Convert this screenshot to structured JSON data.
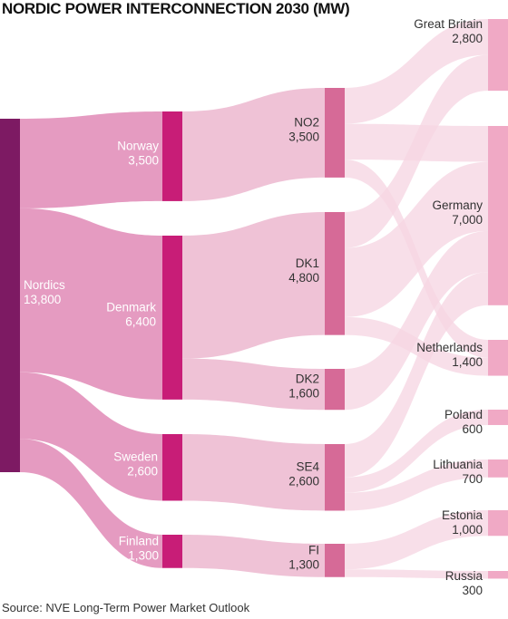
{
  "title": "NORDIC POWER INTERCONNECTION 2030 (MW)",
  "source": "Source: NVE Long-Term Power Market Outlook",
  "colors": {
    "root": "#7d1a63",
    "country": "#c81d77",
    "zone": "#d66a97",
    "destination": "#f0a9c5",
    "link_root": "#e392bc",
    "link_country": "#eebdd3",
    "link_zone": "#f6d6e3"
  },
  "nodes": {
    "nordics": {
      "name": "Nordics",
      "value": "13,800"
    },
    "norway": {
      "name": "Norway",
      "value": "3,500"
    },
    "denmark": {
      "name": "Denmark",
      "value": "6,400"
    },
    "sweden": {
      "name": "Sweden",
      "value": "2,600"
    },
    "finland": {
      "name": "Finland",
      "value": "1,300"
    },
    "no2": {
      "name": "NO2",
      "value": "3,500"
    },
    "dk1": {
      "name": "DK1",
      "value": "4,800"
    },
    "dk2": {
      "name": "DK2",
      "value": "1,600"
    },
    "se4": {
      "name": "SE4",
      "value": "2,600"
    },
    "fi": {
      "name": "FI",
      "value": "1,300"
    },
    "great_britain": {
      "name": "Great Britain",
      "value": "2,800"
    },
    "germany": {
      "name": "Germany",
      "value": "7,000"
    },
    "netherlands": {
      "name": "Netherlands",
      "value": "1,400"
    },
    "poland": {
      "name": "Poland",
      "value": "600"
    },
    "lithuania": {
      "name": "Lithuania",
      "value": "700"
    },
    "estonia": {
      "name": "Estonia",
      "value": "1,000"
    },
    "russia": {
      "name": "Russia",
      "value": "300"
    }
  },
  "chart_data": {
    "type": "sankey",
    "title": "NORDIC POWER INTERCONNECTION 2030 (MW)",
    "unit": "MW",
    "nodes": [
      {
        "id": "nordics",
        "label": "Nordics",
        "value": 13800,
        "level": 0
      },
      {
        "id": "norway",
        "label": "Norway",
        "value": 3500,
        "level": 1
      },
      {
        "id": "denmark",
        "label": "Denmark",
        "value": 6400,
        "level": 1
      },
      {
        "id": "sweden",
        "label": "Sweden",
        "value": 2600,
        "level": 1
      },
      {
        "id": "finland",
        "label": "Finland",
        "value": 1300,
        "level": 1
      },
      {
        "id": "no2",
        "label": "NO2",
        "value": 3500,
        "level": 2
      },
      {
        "id": "dk1",
        "label": "DK1",
        "value": 4800,
        "level": 2
      },
      {
        "id": "dk2",
        "label": "DK2",
        "value": 1600,
        "level": 2
      },
      {
        "id": "se4",
        "label": "SE4",
        "value": 2600,
        "level": 2
      },
      {
        "id": "fi",
        "label": "FI",
        "value": 1300,
        "level": 2
      },
      {
        "id": "great_britain",
        "label": "Great Britain",
        "value": 2800,
        "level": 3
      },
      {
        "id": "germany",
        "label": "Germany",
        "value": 7000,
        "level": 3
      },
      {
        "id": "netherlands",
        "label": "Netherlands",
        "value": 1400,
        "level": 3
      },
      {
        "id": "poland",
        "label": "Poland",
        "value": 600,
        "level": 3
      },
      {
        "id": "lithuania",
        "label": "Lithuania",
        "value": 700,
        "level": 3
      },
      {
        "id": "estonia",
        "label": "Estonia",
        "value": 1000,
        "level": 3
      },
      {
        "id": "russia",
        "label": "Russia",
        "value": 300,
        "level": 3
      }
    ],
    "links": [
      {
        "source": "nordics",
        "target": "norway",
        "value": 3500
      },
      {
        "source": "nordics",
        "target": "denmark",
        "value": 6400
      },
      {
        "source": "nordics",
        "target": "sweden",
        "value": 2600
      },
      {
        "source": "nordics",
        "target": "finland",
        "value": 1300
      },
      {
        "source": "norway",
        "target": "no2",
        "value": 3500
      },
      {
        "source": "denmark",
        "target": "dk1",
        "value": 4800
      },
      {
        "source": "denmark",
        "target": "dk2",
        "value": 1600
      },
      {
        "source": "sweden",
        "target": "se4",
        "value": 2600
      },
      {
        "source": "finland",
        "target": "fi",
        "value": 1300
      },
      {
        "source": "no2",
        "target": "great_britain",
        "value": 1400
      },
      {
        "source": "no2",
        "target": "germany",
        "value": 1400
      },
      {
        "source": "no2",
        "target": "netherlands",
        "value": 700
      },
      {
        "source": "dk1",
        "target": "great_britain",
        "value": 1400
      },
      {
        "source": "dk1",
        "target": "germany",
        "value": 2700
      },
      {
        "source": "dk1",
        "target": "netherlands",
        "value": 700
      },
      {
        "source": "dk2",
        "target": "germany",
        "value": 1600
      },
      {
        "source": "se4",
        "target": "germany",
        "value": 1300
      },
      {
        "source": "se4",
        "target": "poland",
        "value": 600
      },
      {
        "source": "se4",
        "target": "lithuania",
        "value": 700
      },
      {
        "source": "fi",
        "target": "estonia",
        "value": 1000
      },
      {
        "source": "fi",
        "target": "russia",
        "value": 300
      }
    ]
  }
}
